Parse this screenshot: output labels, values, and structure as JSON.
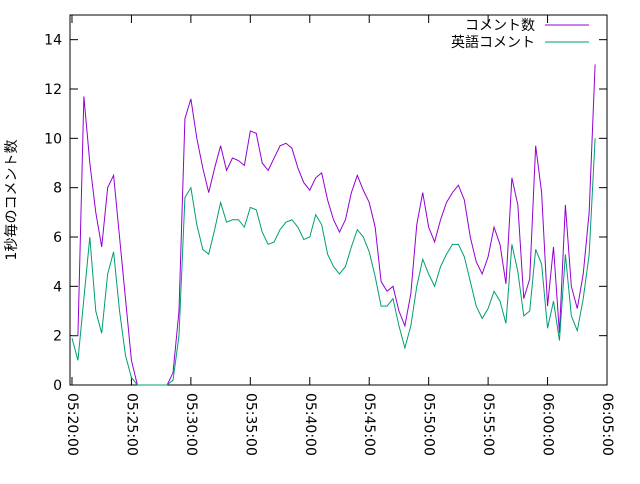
{
  "chart_data": {
    "type": "line",
    "ylabel": "1秒毎のコメント数",
    "legend": "top-right",
    "xlim": [
      19190,
      21900
    ],
    "ylim": [
      0,
      15
    ],
    "yticks": [
      0,
      2,
      4,
      6,
      8,
      10,
      12,
      14
    ],
    "xticks": [
      {
        "value": 19200,
        "label": "05:20:00"
      },
      {
        "value": 19500,
        "label": "05:25:00"
      },
      {
        "value": 19800,
        "label": "05:30:00"
      },
      {
        "value": 20100,
        "label": "05:35:00"
      },
      {
        "value": 20400,
        "label": "05:40:00"
      },
      {
        "value": 20700,
        "label": "05:45:00"
      },
      {
        "value": 21000,
        "label": "05:50:00"
      },
      {
        "value": 21300,
        "label": "05:55:00"
      },
      {
        "value": 21600,
        "label": "06:00:00"
      },
      {
        "value": 21900,
        "label": "06:05:00"
      }
    ],
    "x": [
      19200,
      19230,
      19260,
      19290,
      19320,
      19350,
      19380,
      19410,
      19440,
      19470,
      19500,
      19530,
      19560,
      19590,
      19620,
      19650,
      19680,
      19710,
      19740,
      19770,
      19800,
      19830,
      19860,
      19890,
      19920,
      19950,
      19980,
      20010,
      20040,
      20070,
      20100,
      20130,
      20160,
      20190,
      20220,
      20250,
      20280,
      20310,
      20340,
      20370,
      20400,
      20430,
      20460,
      20490,
      20520,
      20550,
      20580,
      20610,
      20640,
      20670,
      20700,
      20730,
      20760,
      20790,
      20820,
      20850,
      20880,
      20910,
      20940,
      20970,
      21000,
      21030,
      21060,
      21090,
      21120,
      21150,
      21180,
      21210,
      21240,
      21270,
      21300,
      21330,
      21360,
      21390,
      21420,
      21450,
      21480,
      21510,
      21540,
      21570,
      21600,
      21630,
      21660,
      21690,
      21720,
      21750,
      21780,
      21810,
      21840
    ],
    "series": [
      {
        "name": "コメント数",
        "color": "#9400d3",
        "values": [
          2,
          2,
          11.7,
          9,
          7,
          5.6,
          8,
          8.5,
          6,
          3.5,
          1,
          0,
          0,
          0,
          0,
          0,
          0,
          0.5,
          3,
          10.8,
          11.6,
          10,
          8.8,
          7.8,
          8.8,
          9.7,
          8.7,
          9.2,
          9.1,
          8.9,
          10.3,
          10.2,
          9,
          8.7,
          9.2,
          9.7,
          9.8,
          9.6,
          8.8,
          8.2,
          7.9,
          8.4,
          8.6,
          7.5,
          6.7,
          6.2,
          6.7,
          7.8,
          8.5,
          7.9,
          7.4,
          6.4,
          4.2,
          3.8,
          4,
          3,
          2.4,
          3.7,
          6.5,
          7.8,
          6.4,
          5.8,
          6.7,
          7.4,
          7.8,
          8.1,
          7.5,
          6,
          5,
          4.5,
          5.2,
          6.4,
          5.7,
          4.1,
          8.4,
          7.3,
          3.5,
          4.3,
          9.7,
          7.8,
          3.2,
          5.6,
          2.1,
          7.3,
          4,
          3.1,
          4.5,
          7,
          13
        ]
      },
      {
        "name": "英語コメント",
        "color": "#009e73",
        "values": [
          1.9,
          1,
          3.5,
          6,
          3,
          2.1,
          4.5,
          5.4,
          3,
          1.2,
          0.3,
          0,
          0,
          0,
          0,
          0,
          0,
          0.2,
          2,
          7.6,
          8,
          6.5,
          5.5,
          5.3,
          6.3,
          7.4,
          6.6,
          6.7,
          6.7,
          6.4,
          7.2,
          7.1,
          6.2,
          5.7,
          5.8,
          6.3,
          6.6,
          6.7,
          6.4,
          5.9,
          6,
          6.9,
          6.5,
          5.3,
          4.8,
          4.5,
          4.8,
          5.6,
          6.3,
          6,
          5.4,
          4.4,
          3.2,
          3.2,
          3.5,
          2.4,
          1.5,
          2.4,
          4,
          5.1,
          4.5,
          4,
          4.8,
          5.3,
          5.7,
          5.7,
          5.2,
          4.2,
          3.2,
          2.7,
          3.1,
          3.8,
          3.4,
          2.5,
          5.7,
          4.6,
          2.8,
          3,
          5.5,
          4.9,
          2.3,
          3.4,
          1.8,
          5.3,
          2.8,
          2.2,
          3.5,
          5.3,
          10
        ]
      }
    ]
  }
}
